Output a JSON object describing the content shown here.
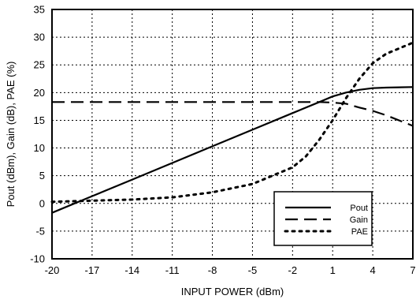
{
  "chart_data": {
    "type": "line",
    "title": "",
    "xlabel": "INPUT POWER (dBm)",
    "ylabel": "Pout (dBm), Gain (dB), PAE (%)",
    "xlim": [
      -20,
      7
    ],
    "ylim": [
      -10,
      35
    ],
    "xticks": [
      -20,
      -17,
      -14,
      -11,
      -8,
      -5,
      -2,
      1,
      4,
      7
    ],
    "yticks": [
      -10,
      -5,
      0,
      5,
      10,
      15,
      20,
      25,
      30,
      35
    ],
    "grid": true,
    "legend_position": "bottom-right",
    "series": [
      {
        "name": "Pout",
        "style": "solid",
        "color": "#000000",
        "points": [
          [
            -20,
            -1.7
          ],
          [
            -17,
            1.3
          ],
          [
            -14,
            4.3
          ],
          [
            -11,
            7.3
          ],
          [
            -8,
            10.3
          ],
          [
            -5,
            13.3
          ],
          [
            -2,
            16.3
          ],
          [
            0,
            18.3
          ],
          [
            1,
            19.3
          ],
          [
            2,
            20.0
          ],
          [
            3,
            20.5
          ],
          [
            4,
            20.8
          ],
          [
            5,
            20.9
          ],
          [
            7,
            21.0
          ]
        ]
      },
      {
        "name": "Gain",
        "style": "dashed",
        "color": "#000000",
        "points": [
          [
            -20,
            18.3
          ],
          [
            -17,
            18.3
          ],
          [
            -14,
            18.3
          ],
          [
            -11,
            18.3
          ],
          [
            -8,
            18.3
          ],
          [
            -5,
            18.3
          ],
          [
            -2,
            18.3
          ],
          [
            0,
            18.3
          ],
          [
            1,
            18.2
          ],
          [
            2,
            18.0
          ],
          [
            3,
            17.3
          ],
          [
            4,
            16.7
          ],
          [
            5,
            15.9
          ],
          [
            7,
            14.0
          ]
        ]
      },
      {
        "name": "PAE",
        "style": "dotted",
        "color": "#000000",
        "points": [
          [
            -20,
            0.3
          ],
          [
            -17,
            0.5
          ],
          [
            -14,
            0.7
          ],
          [
            -11,
            1.1
          ],
          [
            -8,
            2.0
          ],
          [
            -5,
            3.5
          ],
          [
            -2,
            6.5
          ],
          [
            -1,
            8.5
          ],
          [
            0,
            11.5
          ],
          [
            1,
            15.0
          ],
          [
            2,
            19.0
          ],
          [
            3,
            22.5
          ],
          [
            4,
            25.3
          ],
          [
            5,
            27.0
          ],
          [
            7,
            29.0
          ]
        ]
      }
    ]
  }
}
